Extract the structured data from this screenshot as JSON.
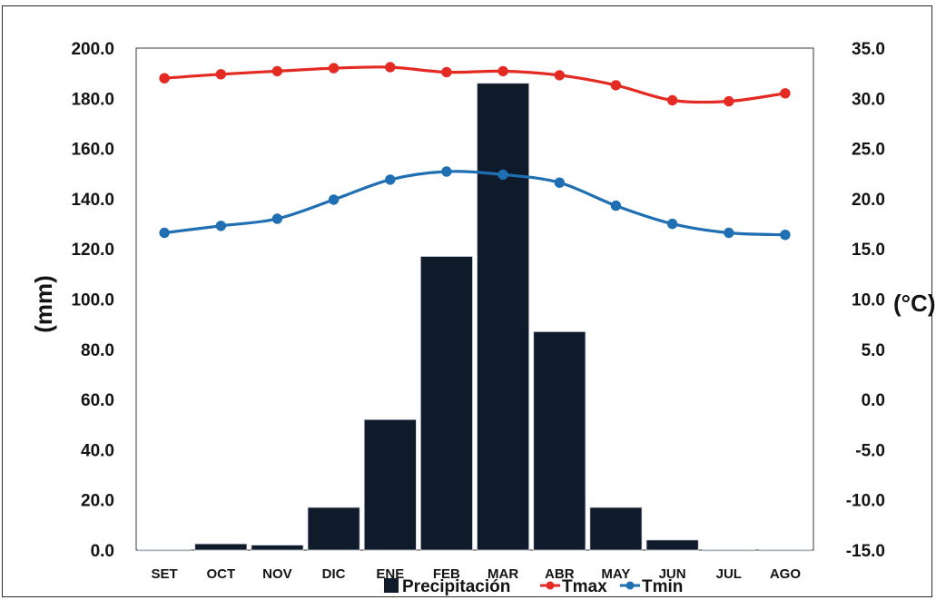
{
  "chart_data": {
    "type": "bar",
    "categories": [
      "SET",
      "OCT",
      "NOV",
      "DIC",
      "ENE",
      "FEB",
      "MAR",
      "ABR",
      "MAY",
      "JUN",
      "JUL",
      "AGO"
    ],
    "series": [
      {
        "name": "Precipitación",
        "type": "bar",
        "axis": "left",
        "color": "#0f1b2b",
        "values": [
          0.0,
          2.5,
          2.0,
          17.0,
          52.0,
          117.0,
          186.0,
          87.0,
          17.0,
          4.0,
          0.0,
          0.0
        ]
      },
      {
        "name": "Tmax",
        "type": "line",
        "axis": "right",
        "color": "#e32b24",
        "values": [
          32.0,
          32.4,
          32.7,
          33.0,
          33.1,
          32.6,
          32.7,
          32.3,
          31.3,
          29.8,
          29.7,
          30.5
        ]
      },
      {
        "name": "Tmin",
        "type": "line",
        "axis": "right",
        "color": "#1f6fb2",
        "values": [
          16.6,
          17.3,
          18.0,
          19.9,
          21.9,
          22.7,
          22.4,
          21.6,
          19.3,
          17.5,
          16.6,
          16.4
        ]
      }
    ],
    "ylabel": "(mm)",
    "y2label": "(°C)",
    "ylim": [
      0,
      200
    ],
    "y2lim": [
      -15,
      35
    ],
    "yticks": [
      "0.0",
      "20.0",
      "40.0",
      "60.0",
      "80.0",
      "100.0",
      "120.0",
      "140.0",
      "160.0",
      "180.0",
      "200.0"
    ],
    "y2ticks": [
      "-15.0",
      "-10.0",
      "-5.0",
      "0.0",
      "5.0",
      "10.0",
      "15.0",
      "20.0",
      "25.0",
      "30.0",
      "35.0"
    ],
    "grid": false,
    "legend": "bottom"
  }
}
